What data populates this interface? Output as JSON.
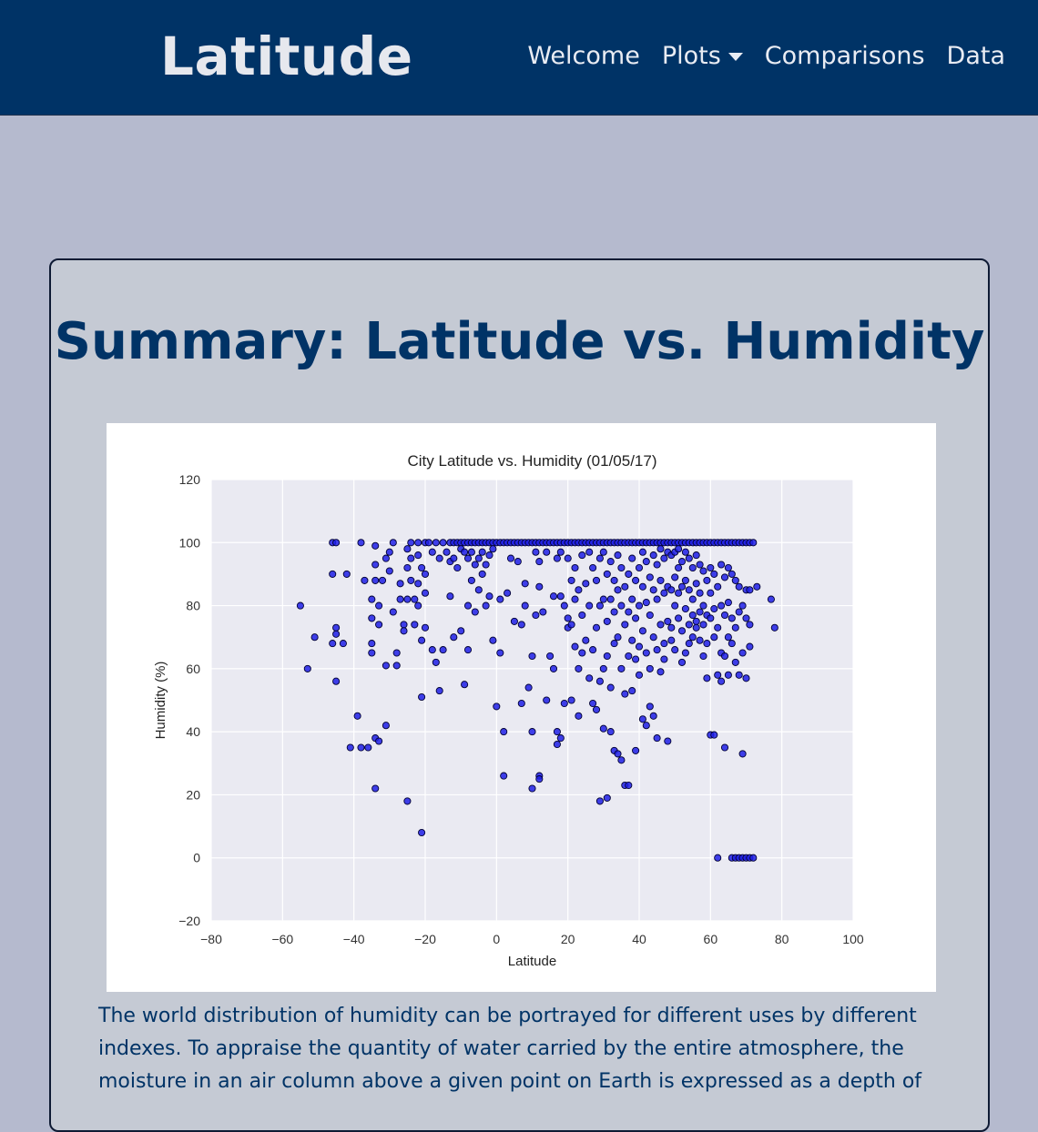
{
  "nav": {
    "brand": "Latitude",
    "links": [
      {
        "label": "Welcome"
      },
      {
        "label": "Plots",
        "dropdown": true
      },
      {
        "label": "Comparisons"
      },
      {
        "label": "Data"
      }
    ]
  },
  "card": {
    "title": "Summary: Latitude vs. Humidity",
    "text": "The world distribution of humidity can be portrayed for different uses by different indexes. To appraise the quantity of water carried by the entire atmosphere, the moisture in an air column above a given point on Earth is expressed as a depth of"
  },
  "colors": {
    "navbar": "#003366",
    "page_background": "#b5bace",
    "card_background": "#c5cad4",
    "plot_background": "#eaeaf2",
    "marker_fill": "#1f1fe6",
    "title_text": "#003366"
  },
  "chart_data": {
    "type": "scatter",
    "title": "City Latitude vs. Humidity (01/05/17)",
    "xlabel": "Latitude",
    "ylabel": "Humidity (%)",
    "xlim": [
      -80,
      100
    ],
    "ylim": [
      -20,
      120
    ],
    "xticks": [
      -80,
      -60,
      -40,
      -20,
      0,
      20,
      40,
      60,
      80,
      100
    ],
    "yticks": [
      -20,
      0,
      20,
      40,
      60,
      80,
      100,
      120
    ],
    "grid": true,
    "legend": "none",
    "points": [
      [
        -55,
        80
      ],
      [
        -53,
        60
      ],
      [
        -51,
        70
      ],
      [
        -46,
        100
      ],
      [
        -45,
        100
      ],
      [
        -46,
        90
      ],
      [
        -45,
        73
      ],
      [
        -45,
        71
      ],
      [
        -46,
        68
      ],
      [
        -45,
        56
      ],
      [
        -43,
        68
      ],
      [
        -42,
        90
      ],
      [
        -41,
        35
      ],
      [
        -39,
        45
      ],
      [
        -38,
        35
      ],
      [
        -38,
        100
      ],
      [
        -37,
        88
      ],
      [
        -36,
        35
      ],
      [
        -35,
        68
      ],
      [
        -35,
        76
      ],
      [
        -35,
        82
      ],
      [
        -34,
        88
      ],
      [
        -34,
        93
      ],
      [
        -34,
        99
      ],
      [
        -35,
        65
      ],
      [
        -34,
        38
      ],
      [
        -33,
        37
      ],
      [
        -34,
        22
      ],
      [
        -33,
        74
      ],
      [
        -33,
        80
      ],
      [
        -32,
        88
      ],
      [
        -31,
        95
      ],
      [
        -31,
        42
      ],
      [
        -31,
        61
      ],
      [
        -30,
        91
      ],
      [
        -30,
        97
      ],
      [
        -29,
        100
      ],
      [
        -29,
        78
      ],
      [
        -28,
        65
      ],
      [
        -28,
        61
      ],
      [
        -27,
        82
      ],
      [
        -27,
        87
      ],
      [
        -26,
        74
      ],
      [
        -26,
        72
      ],
      [
        -25,
        98
      ],
      [
        -25,
        92
      ],
      [
        -25,
        82
      ],
      [
        -25,
        18
      ],
      [
        -24,
        100
      ],
      [
        -24,
        95
      ],
      [
        -24,
        88
      ],
      [
        -23,
        82
      ],
      [
        -23,
        74
      ],
      [
        -22,
        100
      ],
      [
        -22,
        96
      ],
      [
        -22,
        87
      ],
      [
        -22,
        80
      ],
      [
        -21,
        92
      ],
      [
        -21,
        51
      ],
      [
        -21,
        69
      ],
      [
        -21,
        8
      ],
      [
        -20,
        100
      ],
      [
        -20,
        90
      ],
      [
        -20,
        84
      ],
      [
        -20,
        73
      ],
      [
        -19,
        100
      ],
      [
        -18,
        97
      ],
      [
        -18,
        66
      ],
      [
        -17,
        100
      ],
      [
        -17,
        62
      ],
      [
        -16,
        95
      ],
      [
        -16,
        53
      ],
      [
        -15,
        100
      ],
      [
        -15,
        66
      ],
      [
        -14,
        97
      ],
      [
        -13,
        100
      ],
      [
        -13,
        94
      ],
      [
        -13,
        83
      ],
      [
        -12,
        100
      ],
      [
        -12,
        95
      ],
      [
        -12,
        70
      ],
      [
        -11,
        100
      ],
      [
        -11,
        92
      ],
      [
        -10,
        100
      ],
      [
        -10,
        98
      ],
      [
        -10,
        72
      ],
      [
        -9,
        100
      ],
      [
        -9,
        97
      ],
      [
        -9,
        55
      ],
      [
        -8,
        100
      ],
      [
        -8,
        95
      ],
      [
        -8,
        80
      ],
      [
        -8,
        66
      ],
      [
        -7,
        100
      ],
      [
        -7,
        97
      ],
      [
        -7,
        88
      ],
      [
        -6,
        100
      ],
      [
        -6,
        93
      ],
      [
        -6,
        78
      ],
      [
        -5,
        100
      ],
      [
        -5,
        95
      ],
      [
        -5,
        85
      ],
      [
        -4,
        100
      ],
      [
        -4,
        97
      ],
      [
        -4,
        90
      ],
      [
        -3,
        100
      ],
      [
        -3,
        93
      ],
      [
        -3,
        80
      ],
      [
        -2,
        100
      ],
      [
        -2,
        96
      ],
      [
        -2,
        83
      ],
      [
        -1,
        100
      ],
      [
        -1,
        98
      ],
      [
        -1,
        69
      ],
      [
        0,
        100
      ],
      [
        0,
        48
      ],
      [
        1,
        100
      ],
      [
        1,
        82
      ],
      [
        1,
        65
      ],
      [
        2,
        100
      ],
      [
        2,
        26
      ],
      [
        2,
        40
      ],
      [
        3,
        100
      ],
      [
        3,
        84
      ],
      [
        4,
        100
      ],
      [
        4,
        95
      ],
      [
        5,
        100
      ],
      [
        5,
        75
      ],
      [
        6,
        100
      ],
      [
        6,
        94
      ],
      [
        7,
        100
      ],
      [
        7,
        49
      ],
      [
        7,
        74
      ],
      [
        8,
        100
      ],
      [
        8,
        87
      ],
      [
        8,
        80
      ],
      [
        9,
        100
      ],
      [
        9,
        54
      ],
      [
        10,
        100
      ],
      [
        10,
        64
      ],
      [
        10,
        40
      ],
      [
        10,
        22
      ],
      [
        11,
        100
      ],
      [
        11,
        97
      ],
      [
        11,
        77
      ],
      [
        12,
        100
      ],
      [
        12,
        94
      ],
      [
        12,
        86
      ],
      [
        12,
        26
      ],
      [
        12,
        25
      ],
      [
        13,
        100
      ],
      [
        13,
        78
      ],
      [
        14,
        100
      ],
      [
        14,
        97
      ],
      [
        14,
        50
      ],
      [
        15,
        100
      ],
      [
        15,
        64
      ],
      [
        16,
        100
      ],
      [
        16,
        83
      ],
      [
        16,
        60
      ],
      [
        17,
        100
      ],
      [
        17,
        95
      ],
      [
        17,
        40
      ],
      [
        17,
        36
      ],
      [
        18,
        100
      ],
      [
        18,
        97
      ],
      [
        18,
        83
      ],
      [
        18,
        38
      ],
      [
        19,
        100
      ],
      [
        19,
        80
      ],
      [
        19,
        49
      ],
      [
        20,
        100
      ],
      [
        20,
        95
      ],
      [
        20,
        76
      ],
      [
        20,
        73
      ],
      [
        21,
        100
      ],
      [
        21,
        88
      ],
      [
        21,
        74
      ],
      [
        21,
        50
      ],
      [
        22,
        100
      ],
      [
        22,
        92
      ],
      [
        22,
        82
      ],
      [
        22,
        67
      ],
      [
        23,
        100
      ],
      [
        23,
        85
      ],
      [
        23,
        60
      ],
      [
        23,
        45
      ],
      [
        24,
        100
      ],
      [
        24,
        96
      ],
      [
        24,
        77
      ],
      [
        24,
        65
      ],
      [
        25,
        100
      ],
      [
        25,
        87
      ],
      [
        25,
        69
      ],
      [
        26,
        100
      ],
      [
        26,
        97
      ],
      [
        26,
        80
      ],
      [
        26,
        57
      ],
      [
        27,
        100
      ],
      [
        27,
        92
      ],
      [
        27,
        66
      ],
      [
        27,
        49
      ],
      [
        28,
        100
      ],
      [
        28,
        88
      ],
      [
        28,
        73
      ],
      [
        28,
        47
      ],
      [
        29,
        100
      ],
      [
        29,
        95
      ],
      [
        29,
        80
      ],
      [
        29,
        56
      ],
      [
        29,
        18
      ],
      [
        30,
        100
      ],
      [
        30,
        97
      ],
      [
        30,
        82
      ],
      [
        30,
        60
      ],
      [
        30,
        41
      ],
      [
        31,
        100
      ],
      [
        31,
        90
      ],
      [
        31,
        75
      ],
      [
        31,
        64
      ],
      [
        31,
        19
      ],
      [
        32,
        100
      ],
      [
        32,
        94
      ],
      [
        32,
        82
      ],
      [
        32,
        54
      ],
      [
        32,
        40
      ],
      [
        33,
        100
      ],
      [
        33,
        88
      ],
      [
        33,
        78
      ],
      [
        33,
        68
      ],
      [
        33,
        34
      ],
      [
        34,
        100
      ],
      [
        34,
        96
      ],
      [
        34,
        85
      ],
      [
        34,
        70
      ],
      [
        34,
        33
      ],
      [
        35,
        100
      ],
      [
        35,
        92
      ],
      [
        35,
        80
      ],
      [
        35,
        60
      ],
      [
        35,
        31
      ],
      [
        36,
        100
      ],
      [
        36,
        86
      ],
      [
        36,
        74
      ],
      [
        36,
        52
      ],
      [
        36,
        23
      ],
      [
        37,
        100
      ],
      [
        37,
        90
      ],
      [
        37,
        78
      ],
      [
        37,
        64
      ],
      [
        37,
        23
      ],
      [
        38,
        100
      ],
      [
        38,
        95
      ],
      [
        38,
        82
      ],
      [
        38,
        69
      ],
      [
        38,
        53
      ],
      [
        39,
        100
      ],
      [
        39,
        88
      ],
      [
        39,
        76
      ],
      [
        39,
        63
      ],
      [
        39,
        34
      ],
      [
        40,
        100
      ],
      [
        40,
        92
      ],
      [
        40,
        80
      ],
      [
        40,
        67
      ],
      [
        40,
        58
      ],
      [
        41,
        100
      ],
      [
        41,
        97
      ],
      [
        41,
        86
      ],
      [
        41,
        72
      ],
      [
        41,
        44
      ],
      [
        42,
        100
      ],
      [
        42,
        94
      ],
      [
        42,
        81
      ],
      [
        42,
        65
      ],
      [
        42,
        42
      ],
      [
        43,
        100
      ],
      [
        43,
        89
      ],
      [
        43,
        77
      ],
      [
        43,
        60
      ],
      [
        43,
        48
      ],
      [
        44,
        100
      ],
      [
        44,
        96
      ],
      [
        44,
        85
      ],
      [
        44,
        70
      ],
      [
        44,
        45
      ],
      [
        45,
        100
      ],
      [
        45,
        93
      ],
      [
        45,
        82
      ],
      [
        45,
        66
      ],
      [
        45,
        38
      ],
      [
        46,
        100
      ],
      [
        46,
        98
      ],
      [
        46,
        88
      ],
      [
        46,
        74
      ],
      [
        46,
        59
      ],
      [
        47,
        100
      ],
      [
        47,
        95
      ],
      [
        47,
        84
      ],
      [
        47,
        68
      ],
      [
        47,
        63
      ],
      [
        48,
        100
      ],
      [
        48,
        97
      ],
      [
        48,
        86
      ],
      [
        48,
        75
      ],
      [
        48,
        37
      ],
      [
        49,
        100
      ],
      [
        49,
        96
      ],
      [
        49,
        85
      ],
      [
        49,
        73
      ],
      [
        49,
        69
      ],
      [
        50,
        100
      ],
      [
        50,
        97
      ],
      [
        50,
        89
      ],
      [
        50,
        80
      ],
      [
        50,
        66
      ],
      [
        51,
        100
      ],
      [
        51,
        98
      ],
      [
        51,
        92
      ],
      [
        51,
        84
      ],
      [
        51,
        76
      ],
      [
        52,
        100
      ],
      [
        52,
        94
      ],
      [
        52,
        86
      ],
      [
        52,
        72
      ],
      [
        52,
        62
      ],
      [
        53,
        100
      ],
      [
        53,
        97
      ],
      [
        53,
        88
      ],
      [
        53,
        79
      ],
      [
        53,
        65
      ],
      [
        54,
        100
      ],
      [
        54,
        95
      ],
      [
        54,
        85
      ],
      [
        54,
        74
      ],
      [
        54,
        68
      ],
      [
        55,
        100
      ],
      [
        55,
        92
      ],
      [
        55,
        82
      ],
      [
        55,
        77
      ],
      [
        55,
        70
      ],
      [
        56,
        100
      ],
      [
        56,
        96
      ],
      [
        56,
        87
      ],
      [
        56,
        75
      ],
      [
        56,
        73
      ],
      [
        57,
        100
      ],
      [
        57,
        93
      ],
      [
        57,
        84
      ],
      [
        57,
        78
      ],
      [
        57,
        69
      ],
      [
        58,
        100
      ],
      [
        58,
        91
      ],
      [
        58,
        80
      ],
      [
        58,
        74
      ],
      [
        58,
        64
      ],
      [
        59,
        100
      ],
      [
        59,
        88
      ],
      [
        59,
        77
      ],
      [
        59,
        68
      ],
      [
        59,
        57
      ],
      [
        60,
        100
      ],
      [
        60,
        92
      ],
      [
        60,
        84
      ],
      [
        60,
        76
      ],
      [
        60,
        39
      ],
      [
        61,
        100
      ],
      [
        61,
        90
      ],
      [
        61,
        79
      ],
      [
        61,
        70
      ],
      [
        61,
        39
      ],
      [
        62,
        100
      ],
      [
        62,
        86
      ],
      [
        62,
        73
      ],
      [
        62,
        58
      ],
      [
        62,
        0
      ],
      [
        63,
        100
      ],
      [
        63,
        93
      ],
      [
        63,
        80
      ],
      [
        63,
        65
      ],
      [
        63,
        56
      ],
      [
        64,
        100
      ],
      [
        64,
        89
      ],
      [
        64,
        77
      ],
      [
        64,
        64
      ],
      [
        64,
        35
      ],
      [
        65,
        100
      ],
      [
        65,
        92
      ],
      [
        65,
        81
      ],
      [
        65,
        70
      ],
      [
        65,
        58
      ],
      [
        66,
        100
      ],
      [
        66,
        90
      ],
      [
        66,
        76
      ],
      [
        66,
        68
      ],
      [
        66,
        0
      ],
      [
        67,
        100
      ],
      [
        67,
        88
      ],
      [
        67,
        73
      ],
      [
        67,
        62
      ],
      [
        67,
        0
      ],
      [
        68,
        100
      ],
      [
        68,
        86
      ],
      [
        68,
        78
      ],
      [
        68,
        58
      ],
      [
        68,
        0
      ],
      [
        69,
        100
      ],
      [
        69,
        80
      ],
      [
        69,
        65
      ],
      [
        69,
        33
      ],
      [
        69,
        0
      ],
      [
        70,
        100
      ],
      [
        70,
        85
      ],
      [
        70,
        76
      ],
      [
        70,
        57
      ],
      [
        70,
        0
      ],
      [
        71,
        100
      ],
      [
        71,
        85
      ],
      [
        71,
        74
      ],
      [
        71,
        67
      ],
      [
        71,
        0
      ],
      [
        72,
        100
      ],
      [
        72,
        0
      ],
      [
        73,
        86
      ],
      [
        77,
        82
      ],
      [
        78,
        73
      ]
    ]
  }
}
